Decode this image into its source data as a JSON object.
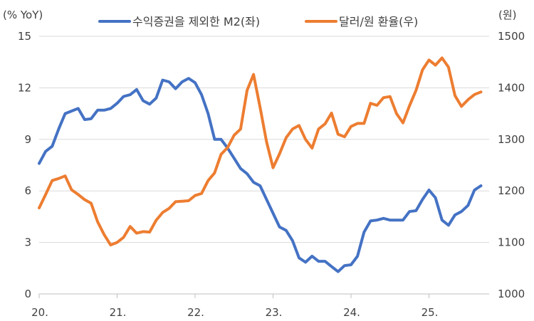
{
  "chart_data": {
    "type": "line",
    "left_axis_label": "(% YoY)",
    "right_axis_label": "(원)",
    "left_ylim": [
      0,
      15
    ],
    "left_ticks": [
      "0",
      "3",
      "6",
      "9",
      "12",
      "15"
    ],
    "right_ylim": [
      1000,
      1500
    ],
    "right_ticks": [
      "1000",
      "1100",
      "1200",
      "1300",
      "1400",
      "1500"
    ],
    "x_ticks": [
      "20.",
      "21.",
      "22.",
      "23.",
      "24.",
      "25."
    ],
    "series": [
      {
        "name": "수익증권을 제외한 M2(좌)",
        "axis": "left",
        "color": "#4472c4",
        "values": [
          7.6,
          8.3,
          8.6,
          9.6,
          10.5,
          10.65,
          10.8,
          10.15,
          10.2,
          10.7,
          10.7,
          10.8,
          11.1,
          11.5,
          11.6,
          11.9,
          11.25,
          11.05,
          11.4,
          12.45,
          12.35,
          11.95,
          12.35,
          12.55,
          12.3,
          11.6,
          10.5,
          9.0,
          9.0,
          8.5,
          7.9,
          7.3,
          7.0,
          6.5,
          6.3,
          5.5,
          4.7,
          3.9,
          3.7,
          3.1,
          2.1,
          1.85,
          2.2,
          1.9,
          1.9,
          1.6,
          1.3,
          1.65,
          1.7,
          2.2,
          3.6,
          4.25,
          4.3,
          4.4,
          4.3,
          4.3,
          4.3,
          4.8,
          4.85,
          5.5,
          6.05,
          5.6,
          4.3,
          4.0,
          4.6,
          4.8,
          5.15,
          6.05,
          6.3
        ]
      },
      {
        "name": "달러/원 환율(우)",
        "axis": "right",
        "color": "#ed7d31",
        "values": [
          1167,
          1193,
          1220,
          1224,
          1229,
          1202,
          1193,
          1183,
          1176,
          1140,
          1115,
          1095,
          1100,
          1110,
          1131,
          1118,
          1121,
          1120,
          1143,
          1158,
          1166,
          1179,
          1180,
          1181,
          1191,
          1195,
          1220,
          1235,
          1271,
          1284,
          1308,
          1320,
          1395,
          1426,
          1362,
          1295,
          1245,
          1272,
          1303,
          1320,
          1327,
          1300,
          1283,
          1320,
          1330,
          1351,
          1310,
          1305,
          1325,
          1331,
          1331,
          1370,
          1366,
          1381,
          1383,
          1350,
          1332,
          1365,
          1395,
          1435,
          1454,
          1444,
          1458,
          1440,
          1385,
          1364,
          1377,
          1387,
          1392
        ]
      }
    ]
  }
}
